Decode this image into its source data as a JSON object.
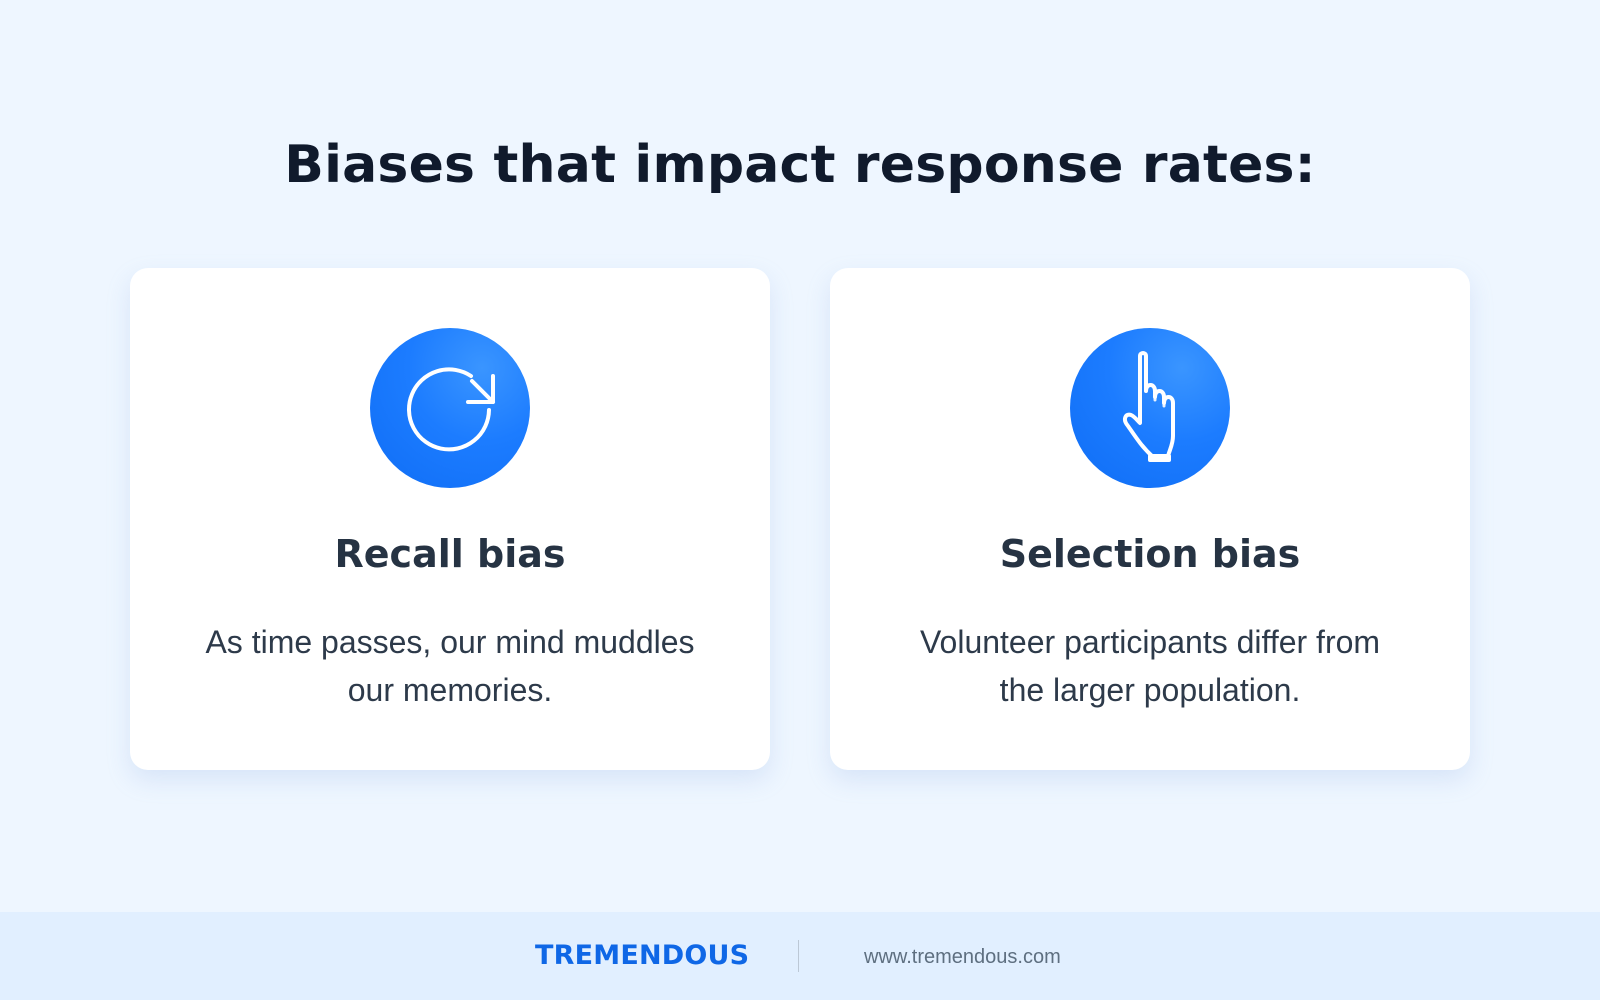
{
  "title": "Biases that impact response rates:",
  "cards": [
    {
      "icon": "recall-icon",
      "title": "Recall bias",
      "description_line_1": "As time passes, our mind muddles",
      "description_line_2": "our memories."
    },
    {
      "icon": "pointing-hand-icon",
      "title": "Selection bias",
      "description_line_1": "Volunteer participants differ from",
      "description_line_2": "the larger population."
    }
  ],
  "footer": {
    "brand": "TREMENDOUS",
    "url": "www.tremendous.com"
  },
  "colors": {
    "background": "#eef6ff",
    "card": "#ffffff",
    "accent": "#1c7cff",
    "brand": "#0f67e6"
  }
}
